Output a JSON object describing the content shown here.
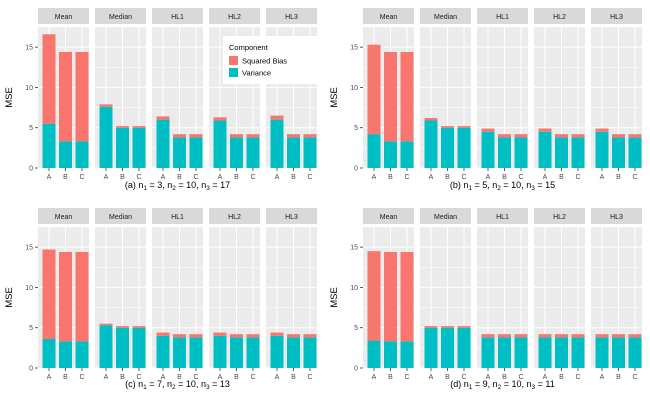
{
  "chart_data": [
    {
      "type": "bar",
      "stacked": true,
      "caption": {
        "label": "(a)",
        "n1": "3",
        "n2": "10",
        "n3": "17"
      },
      "ylabel": "MSE",
      "ylim": [
        0,
        17.5
      ],
      "yticks": [
        "0",
        "5",
        "10",
        "15"
      ],
      "panels": [
        "Mean",
        "Median",
        "HL1",
        "HL2",
        "HL3"
      ],
      "categories": [
        "A",
        "B",
        "C"
      ],
      "series": [
        {
          "name": "Variance",
          "values": [
            [
              5.5,
              3.3,
              3.3
            ],
            [
              7.6,
              5.0,
              5.0
            ],
            [
              6.0,
              3.8,
              3.8
            ],
            [
              5.9,
              3.8,
              3.8
            ],
            [
              6.0,
              3.8,
              3.8
            ]
          ]
        },
        {
          "name": "Squared Bias",
          "values": [
            [
              11.1,
              11.1,
              11.1
            ],
            [
              0.3,
              0.2,
              0.2
            ],
            [
              0.4,
              0.4,
              0.4
            ],
            [
              0.4,
              0.4,
              0.4
            ],
            [
              0.5,
              0.4,
              0.4
            ]
          ]
        }
      ]
    },
    {
      "type": "bar",
      "stacked": true,
      "caption": {
        "label": "(b)",
        "n1": "5",
        "n2": "10",
        "n3": "15"
      },
      "ylabel": "MSE",
      "ylim": [
        0,
        17.5
      ],
      "yticks": [
        "0",
        "5",
        "10",
        "15"
      ],
      "panels": [
        "Mean",
        "Median",
        "HL1",
        "HL2",
        "HL3"
      ],
      "categories": [
        "A",
        "B",
        "C"
      ],
      "series": [
        {
          "name": "Variance",
          "values": [
            [
              4.2,
              3.3,
              3.3
            ],
            [
              5.9,
              5.0,
              5.0
            ],
            [
              4.5,
              3.8,
              3.8
            ],
            [
              4.5,
              3.8,
              3.8
            ],
            [
              4.5,
              3.8,
              3.8
            ]
          ]
        },
        {
          "name": "Squared Bias",
          "values": [
            [
              11.1,
              11.1,
              11.1
            ],
            [
              0.3,
              0.2,
              0.2
            ],
            [
              0.4,
              0.4,
              0.4
            ],
            [
              0.4,
              0.4,
              0.4
            ],
            [
              0.4,
              0.4,
              0.4
            ]
          ]
        }
      ]
    },
    {
      "type": "bar",
      "stacked": true,
      "caption": {
        "label": "(c)",
        "n1": "7",
        "n2": "10",
        "n3": "13"
      },
      "ylabel": "MSE",
      "ylim": [
        0,
        17.5
      ],
      "yticks": [
        "0",
        "5",
        "10",
        "15"
      ],
      "panels": [
        "Mean",
        "Median",
        "HL1",
        "HL2",
        "HL3"
      ],
      "categories": [
        "A",
        "B",
        "C"
      ],
      "series": [
        {
          "name": "Variance",
          "values": [
            [
              3.6,
              3.3,
              3.3
            ],
            [
              5.3,
              5.0,
              5.0
            ],
            [
              4.0,
              3.8,
              3.8
            ],
            [
              4.0,
              3.8,
              3.8
            ],
            [
              4.0,
              3.8,
              3.8
            ]
          ]
        },
        {
          "name": "Squared Bias",
          "values": [
            [
              11.1,
              11.1,
              11.1
            ],
            [
              0.2,
              0.2,
              0.2
            ],
            [
              0.4,
              0.4,
              0.4
            ],
            [
              0.4,
              0.4,
              0.4
            ],
            [
              0.4,
              0.4,
              0.4
            ]
          ]
        }
      ]
    },
    {
      "type": "bar",
      "stacked": true,
      "caption": {
        "label": "(d)",
        "n1": "9",
        "n2": "10",
        "n3": "11"
      },
      "ylabel": "MSE",
      "ylim": [
        0,
        17.5
      ],
      "yticks": [
        "0",
        "5",
        "10",
        "15"
      ],
      "panels": [
        "Mean",
        "Median",
        "HL1",
        "HL2",
        "HL3"
      ],
      "categories": [
        "A",
        "B",
        "C"
      ],
      "series": [
        {
          "name": "Variance",
          "values": [
            [
              3.4,
              3.3,
              3.3
            ],
            [
              5.0,
              5.0,
              5.0
            ],
            [
              3.8,
              3.8,
              3.8
            ],
            [
              3.8,
              3.8,
              3.8
            ],
            [
              3.8,
              3.8,
              3.8
            ]
          ]
        },
        {
          "name": "Squared Bias",
          "values": [
            [
              11.1,
              11.1,
              11.1
            ],
            [
              0.2,
              0.2,
              0.2
            ],
            [
              0.4,
              0.4,
              0.4
            ],
            [
              0.4,
              0.4,
              0.4
            ],
            [
              0.4,
              0.4,
              0.4
            ]
          ]
        }
      ]
    }
  ],
  "legend": {
    "title": "Component",
    "items": [
      {
        "label": "Squared Bias",
        "color": "#F8766D"
      },
      {
        "label": "Variance",
        "color": "#00BFC4"
      }
    ]
  },
  "colors": {
    "panel_bg": "#EBEBEB",
    "strip_bg": "#D9D9D9",
    "grid": "#ffffff",
    "squared_bias": "#F8766D",
    "variance": "#00BFC4"
  }
}
